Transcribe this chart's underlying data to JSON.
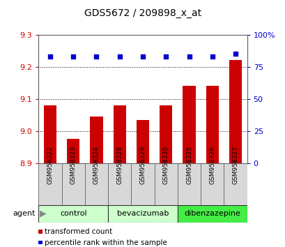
{
  "title": "GDS5672 / 209898_x_at",
  "samples": [
    "GSM958322",
    "GSM958323",
    "GSM958324",
    "GSM958328",
    "GSM958329",
    "GSM958330",
    "GSM958325",
    "GSM958326",
    "GSM958327"
  ],
  "bar_values": [
    9.08,
    8.975,
    9.045,
    9.08,
    9.035,
    9.08,
    9.14,
    9.14,
    9.22
  ],
  "percentile_values": [
    83,
    83,
    83,
    83,
    83,
    83,
    83,
    83,
    85
  ],
  "ylim": [
    8.9,
    9.3
  ],
  "yticks": [
    8.9,
    9.0,
    9.1,
    9.2,
    9.3
  ],
  "right_ylim": [
    0,
    100
  ],
  "right_yticks": [
    0,
    25,
    50,
    75,
    100
  ],
  "right_yticklabels": [
    "0",
    "25",
    "50",
    "75",
    "100%"
  ],
  "bar_color": "#cc0000",
  "dot_color": "#0000cc",
  "groups": [
    {
      "label": "control",
      "start": 0,
      "end": 3,
      "color": "#ccffcc"
    },
    {
      "label": "bevacizumab",
      "start": 3,
      "end": 6,
      "color": "#ccffcc"
    },
    {
      "label": "dibenzazepine",
      "start": 6,
      "end": 9,
      "color": "#44ee44"
    }
  ],
  "agent_label": "agent",
  "legend_items": [
    {
      "label": "transformed count",
      "color": "#cc0000"
    },
    {
      "label": "percentile rank within the sample",
      "color": "#0000cc"
    }
  ],
  "tick_color_left": "#cc0000",
  "tick_color_right": "#0000cc",
  "grid_color": "#000000",
  "sample_box_color": "#d8d8d8",
  "bg_color": "#ffffff"
}
